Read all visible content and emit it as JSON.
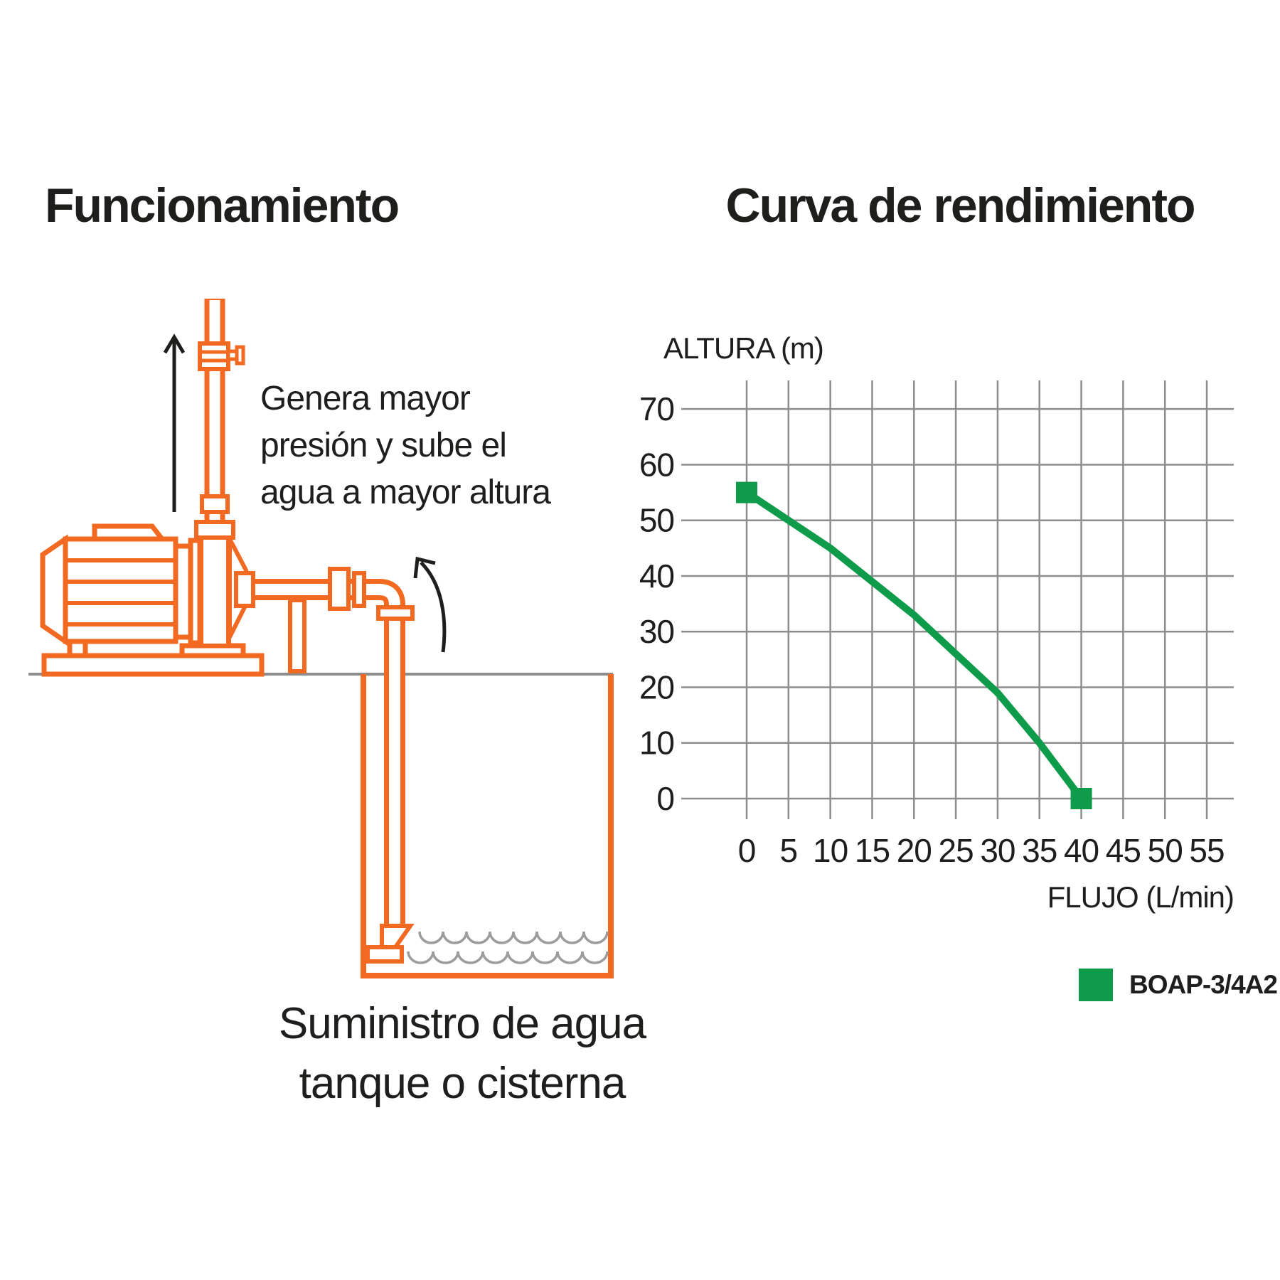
{
  "left": {
    "title": "Funcionamiento",
    "annotation": {
      "line1": "Genera mayor",
      "line2": "presión y sube el",
      "line3": "agua a mayor altura"
    },
    "caption": {
      "line1": "Suministro de agua",
      "line2": "tanque o cisterna"
    },
    "colors": {
      "pipe_orange": "#F26A21",
      "ground_gray": "#8D8D8D",
      "wave_gray": "#9C9C9C",
      "arrow_black": "#1E1E1C"
    }
  },
  "right": {
    "title": "Curva de rendimiento"
  },
  "chart_data": {
    "type": "line",
    "title": "Curva de rendimiento",
    "xlabel": "FLUJO (L/min)",
    "ylabel": "ALTURA (m)",
    "xlim": [
      0,
      55
    ],
    "ylim": [
      0,
      70
    ],
    "x_ticks": [
      0,
      5,
      10,
      15,
      20,
      25,
      30,
      35,
      40,
      45,
      50,
      55
    ],
    "y_ticks": [
      0,
      10,
      20,
      30,
      40,
      50,
      60,
      70
    ],
    "grid": true,
    "grid_color": "#8D8D8D",
    "legend_position": "bottom-right",
    "legend": [
      {
        "label": "BOAP-3/4A2",
        "color": "#0F9C4A"
      }
    ],
    "series": [
      {
        "name": "BOAP-3/4A2",
        "color": "#0F9C4A",
        "points": [
          [
            0,
            55
          ],
          [
            5,
            50
          ],
          [
            10,
            45
          ],
          [
            15,
            39
          ],
          [
            20,
            33
          ],
          [
            25,
            26
          ],
          [
            30,
            19
          ],
          [
            35,
            10
          ],
          [
            40,
            0
          ]
        ],
        "endpoint_markers": true
      }
    ]
  }
}
